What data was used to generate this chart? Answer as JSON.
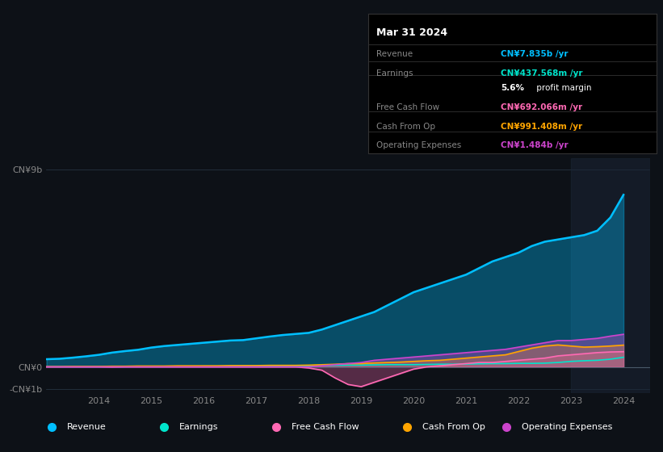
{
  "bg_color": "#0d1117",
  "plot_bg_color": "#0d1117",
  "title": "Mar 31 2024",
  "tooltip": {
    "Revenue": {
      "value": "CN¥7.835b",
      "color": "#00bfff"
    },
    "Earnings": {
      "value": "CN¥437.568m",
      "color": "#00e5cc"
    },
    "profit_margin": "5.6%",
    "Free Cash Flow": {
      "value": "CN¥692.066m",
      "color": "#ff69b4"
    },
    "Cash From Op": {
      "value": "CN¥991.408m",
      "color": "#ffa500"
    },
    "Operating Expenses": {
      "value": "CN¥1.484b",
      "color": "#cc44cc"
    }
  },
  "ylabel_top": "CN¥9b",
  "ylabel_zero": "CN¥0",
  "ylabel_neg": "-CN¥1b",
  "x_labels": [
    "2014",
    "2015",
    "2016",
    "2017",
    "2018",
    "2019",
    "2020",
    "2021",
    "2022",
    "2023",
    "2024"
  ],
  "legend": [
    {
      "label": "Revenue",
      "color": "#00bfff"
    },
    {
      "label": "Earnings",
      "color": "#00e5cc"
    },
    {
      "label": "Free Cash Flow",
      "color": "#ff69b4"
    },
    {
      "label": "Cash From Op",
      "color": "#ffa500"
    },
    {
      "label": "Operating Expenses",
      "color": "#cc44cc"
    }
  ],
  "series": {
    "revenue": {
      "color": "#00bfff",
      "fill": true,
      "fill_alpha": 0.35,
      "data_x": [
        2013,
        2013.25,
        2013.5,
        2013.75,
        2014,
        2014.25,
        2014.5,
        2014.75,
        2015,
        2015.25,
        2015.5,
        2015.75,
        2016,
        2016.25,
        2016.5,
        2016.75,
        2017,
        2017.25,
        2017.5,
        2017.75,
        2018,
        2018.25,
        2018.5,
        2018.75,
        2019,
        2019.25,
        2019.5,
        2019.75,
        2020,
        2020.25,
        2020.5,
        2020.75,
        2021,
        2021.25,
        2021.5,
        2021.75,
        2022,
        2022.25,
        2022.5,
        2022.75,
        2023,
        2023.25,
        2023.5,
        2023.75,
        2024
      ],
      "data_y": [
        0.35,
        0.37,
        0.42,
        0.48,
        0.55,
        0.65,
        0.72,
        0.78,
        0.88,
        0.95,
        1.0,
        1.05,
        1.1,
        1.15,
        1.2,
        1.22,
        1.3,
        1.38,
        1.45,
        1.5,
        1.55,
        1.7,
        1.9,
        2.1,
        2.3,
        2.5,
        2.8,
        3.1,
        3.4,
        3.6,
        3.8,
        4.0,
        4.2,
        4.5,
        4.8,
        5.0,
        5.2,
        5.5,
        5.7,
        5.8,
        5.9,
        6.0,
        6.2,
        6.8,
        7.835
      ]
    },
    "earnings": {
      "color": "#00e5cc",
      "fill": false,
      "data_x": [
        2013,
        2013.25,
        2013.5,
        2013.75,
        2014,
        2014.25,
        2014.5,
        2014.75,
        2015,
        2015.25,
        2015.5,
        2015.75,
        2016,
        2016.25,
        2016.5,
        2016.75,
        2017,
        2017.25,
        2017.5,
        2017.75,
        2018,
        2018.25,
        2018.5,
        2018.75,
        2019,
        2019.25,
        2019.5,
        2019.75,
        2020,
        2020.25,
        2020.5,
        2020.75,
        2021,
        2021.25,
        2021.5,
        2021.75,
        2022,
        2022.25,
        2022.5,
        2022.75,
        2023,
        2023.25,
        2023.5,
        2023.75,
        2024
      ],
      "data_y": [
        0.01,
        0.01,
        0.01,
        0.01,
        0.01,
        0.01,
        0.01,
        0.02,
        0.02,
        0.02,
        0.02,
        0.02,
        0.03,
        0.03,
        0.03,
        0.04,
        0.04,
        0.04,
        0.05,
        0.05,
        0.05,
        0.06,
        0.07,
        0.08,
        0.08,
        0.09,
        0.1,
        0.1,
        0.1,
        0.11,
        0.12,
        0.12,
        0.13,
        0.14,
        0.15,
        0.15,
        0.16,
        0.16,
        0.17,
        0.2,
        0.25,
        0.28,
        0.3,
        0.35,
        0.4376
      ]
    },
    "free_cash_flow": {
      "color": "#ff69b4",
      "fill": true,
      "fill_alpha": 0.3,
      "data_x": [
        2013,
        2013.25,
        2013.5,
        2013.75,
        2014,
        2014.25,
        2014.5,
        2014.75,
        2015,
        2015.25,
        2015.5,
        2015.75,
        2016,
        2016.25,
        2016.5,
        2016.75,
        2017,
        2017.25,
        2017.5,
        2017.75,
        2018,
        2018.25,
        2018.5,
        2018.75,
        2019,
        2019.25,
        2019.5,
        2019.75,
        2020,
        2020.25,
        2020.5,
        2020.75,
        2021,
        2021.25,
        2021.5,
        2021.75,
        2022,
        2022.25,
        2022.5,
        2022.75,
        2023,
        2023.25,
        2023.5,
        2023.75,
        2024
      ],
      "data_y": [
        0.0,
        0.0,
        0.0,
        0.0,
        0.0,
        -0.01,
        0.0,
        0.0,
        0.0,
        0.0,
        0.0,
        0.0,
        0.0,
        0.0,
        0.0,
        0.0,
        0.0,
        0.0,
        0.0,
        0.0,
        -0.05,
        -0.15,
        -0.5,
        -0.8,
        -0.9,
        -0.7,
        -0.5,
        -0.3,
        -0.1,
        0.0,
        0.05,
        0.1,
        0.15,
        0.2,
        0.2,
        0.25,
        0.3,
        0.35,
        0.4,
        0.5,
        0.55,
        0.6,
        0.65,
        0.68,
        0.692
      ]
    },
    "cash_from_op": {
      "color": "#ffa500",
      "fill": true,
      "fill_alpha": 0.35,
      "data_x": [
        2013,
        2013.25,
        2013.5,
        2013.75,
        2014,
        2014.25,
        2014.5,
        2014.75,
        2015,
        2015.25,
        2015.5,
        2015.75,
        2016,
        2016.25,
        2016.5,
        2016.75,
        2017,
        2017.25,
        2017.5,
        2017.75,
        2018,
        2018.25,
        2018.5,
        2018.75,
        2019,
        2019.25,
        2019.5,
        2019.75,
        2020,
        2020.25,
        2020.5,
        2020.75,
        2021,
        2021.25,
        2021.5,
        2021.75,
        2022,
        2022.25,
        2022.5,
        2022.75,
        2023,
        2023.25,
        2023.5,
        2023.75,
        2024
      ],
      "data_y": [
        0.01,
        0.01,
        0.02,
        0.02,
        0.02,
        0.03,
        0.03,
        0.04,
        0.04,
        0.04,
        0.05,
        0.05,
        0.05,
        0.05,
        0.06,
        0.06,
        0.06,
        0.07,
        0.07,
        0.07,
        0.08,
        0.1,
        0.12,
        0.15,
        0.15,
        0.18,
        0.2,
        0.22,
        0.25,
        0.28,
        0.3,
        0.35,
        0.4,
        0.45,
        0.5,
        0.55,
        0.7,
        0.85,
        0.95,
        1.0,
        0.95,
        0.9,
        0.92,
        0.95,
        0.991
      ]
    },
    "operating_expenses": {
      "color": "#cc44cc",
      "fill": true,
      "fill_alpha": 0.35,
      "data_x": [
        2013,
        2013.25,
        2013.5,
        2013.75,
        2014,
        2014.25,
        2014.5,
        2014.75,
        2015,
        2015.25,
        2015.5,
        2015.75,
        2016,
        2016.25,
        2016.5,
        2016.75,
        2017,
        2017.25,
        2017.5,
        2017.75,
        2018,
        2018.25,
        2018.5,
        2018.75,
        2019,
        2019.25,
        2019.5,
        2019.75,
        2020,
        2020.25,
        2020.5,
        2020.75,
        2021,
        2021.25,
        2021.5,
        2021.75,
        2022,
        2022.25,
        2022.5,
        2022.75,
        2023,
        2023.25,
        2023.5,
        2023.75,
        2024
      ],
      "data_y": [
        0.0,
        0.0,
        0.0,
        0.0,
        0.0,
        0.0,
        0.0,
        0.0,
        0.0,
        0.0,
        0.0,
        0.0,
        0.0,
        0.0,
        0.0,
        0.0,
        0.0,
        0.0,
        0.0,
        0.0,
        0.0,
        0.05,
        0.1,
        0.15,
        0.2,
        0.3,
        0.35,
        0.4,
        0.45,
        0.5,
        0.55,
        0.6,
        0.65,
        0.7,
        0.75,
        0.8,
        0.9,
        1.0,
        1.1,
        1.2,
        1.2,
        1.25,
        1.3,
        1.4,
        1.484
      ]
    }
  },
  "ylim": [
    -1.2,
    9.5
  ],
  "xlim": [
    2013.0,
    2024.5
  ],
  "y_ticks_labels": {
    "9": "CN¥9b",
    "0": "CN¥0",
    "-1": "-CN¥1b"
  },
  "grid_color": "#2a3a4a",
  "zero_line_color": "#4a5a6a",
  "tooltip_sep_color": "#333333",
  "tooltip_bg": "#000000",
  "tooltip_label_color": "#888888"
}
